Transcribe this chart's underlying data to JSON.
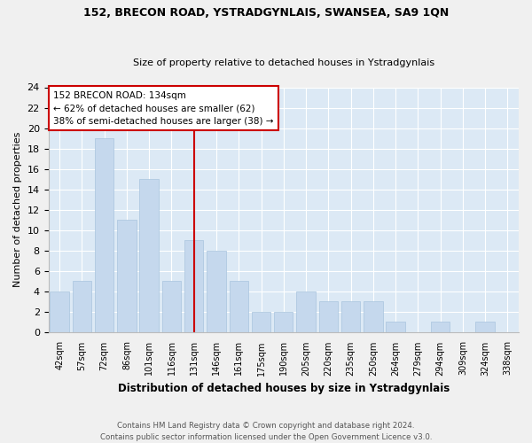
{
  "title1": "152, BRECON ROAD, YSTRADGYNLAIS, SWANSEA, SA9 1QN",
  "title2": "Size of property relative to detached houses in Ystradgynlais",
  "xlabel": "Distribution of detached houses by size in Ystradgynlais",
  "ylabel": "Number of detached properties",
  "categories": [
    "42sqm",
    "57sqm",
    "72sqm",
    "86sqm",
    "101sqm",
    "116sqm",
    "131sqm",
    "146sqm",
    "161sqm",
    "175sqm",
    "190sqm",
    "205sqm",
    "220sqm",
    "235sqm",
    "250sqm",
    "264sqm",
    "279sqm",
    "294sqm",
    "309sqm",
    "324sqm",
    "338sqm"
  ],
  "values": [
    4,
    5,
    19,
    11,
    15,
    5,
    9,
    8,
    5,
    2,
    2,
    4,
    3,
    3,
    3,
    1,
    0,
    1,
    0,
    1,
    0
  ],
  "bar_color": "#c5d8ed",
  "bar_edge_color": "#a8c4de",
  "vline_x_index": 6,
  "vline_color": "#cc0000",
  "annotation_text": "152 BRECON ROAD: 134sqm\n← 62% of detached houses are smaller (62)\n38% of semi-detached houses are larger (38) →",
  "annotation_box_color": "#ffffff",
  "annotation_box_edge_color": "#cc0000",
  "ylim": [
    0,
    24
  ],
  "yticks": [
    0,
    2,
    4,
    6,
    8,
    10,
    12,
    14,
    16,
    18,
    20,
    22,
    24
  ],
  "footer": "Contains HM Land Registry data © Crown copyright and database right 2024.\nContains public sector information licensed under the Open Government Licence v3.0.",
  "fig_bg_color": "#f0f0f0",
  "plot_bg_color": "#dce9f5"
}
